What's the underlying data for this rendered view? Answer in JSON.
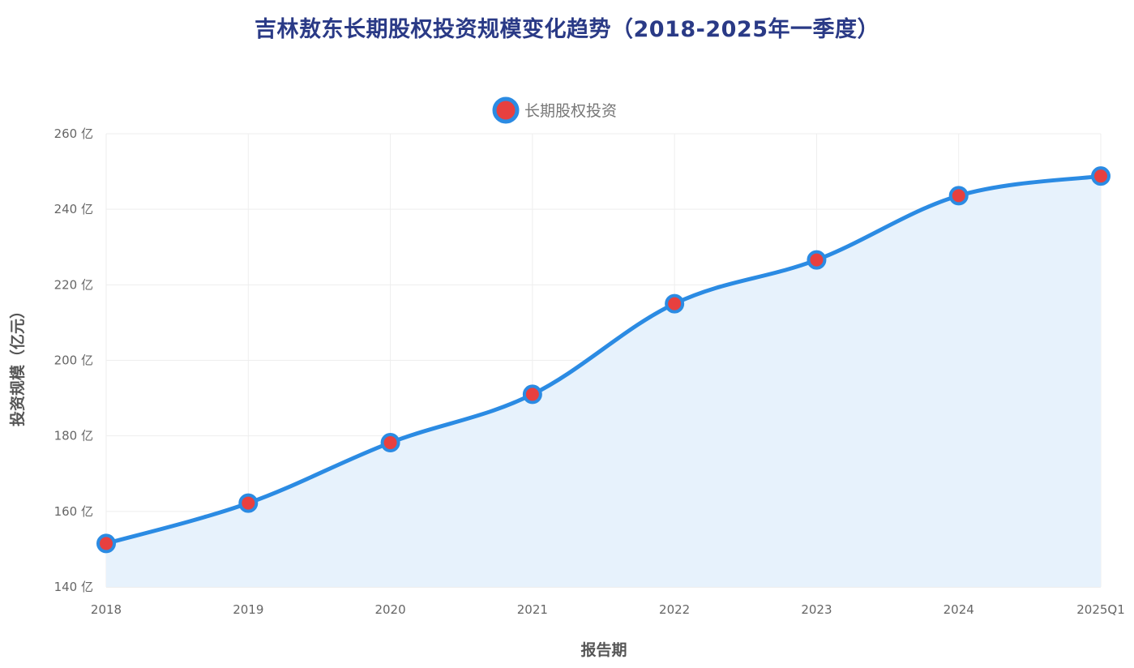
{
  "chart_data": {
    "type": "line",
    "title": "吉林敖东长期股权投资规模变化趋势（2018-2025年一季度）",
    "xlabel": "报告期",
    "ylabel": "投资规模（亿元）",
    "categories": [
      "2018",
      "2019",
      "2020",
      "2021",
      "2022",
      "2023",
      "2024",
      "2025Q1"
    ],
    "series": [
      {
        "name": "长期股权投资",
        "values": [
          151.5,
          162.2,
          178.2,
          191.0,
          215.0,
          226.6,
          243.6,
          248.8
        ]
      }
    ],
    "ylim": [
      140,
      260
    ],
    "y_ticks": [
      140,
      160,
      180,
      200,
      220,
      240,
      260
    ],
    "y_tick_suffix": " 亿",
    "grid": true,
    "legend_position": "top-center",
    "area_fill": true,
    "smooth": true,
    "colors": {
      "line": "#2b8be3",
      "fill": "#e7f2fc",
      "point_fill": "#e8403f",
      "point_stroke": "#2b8be3",
      "grid": "#eeeeee",
      "title": "#2a3a86"
    }
  }
}
